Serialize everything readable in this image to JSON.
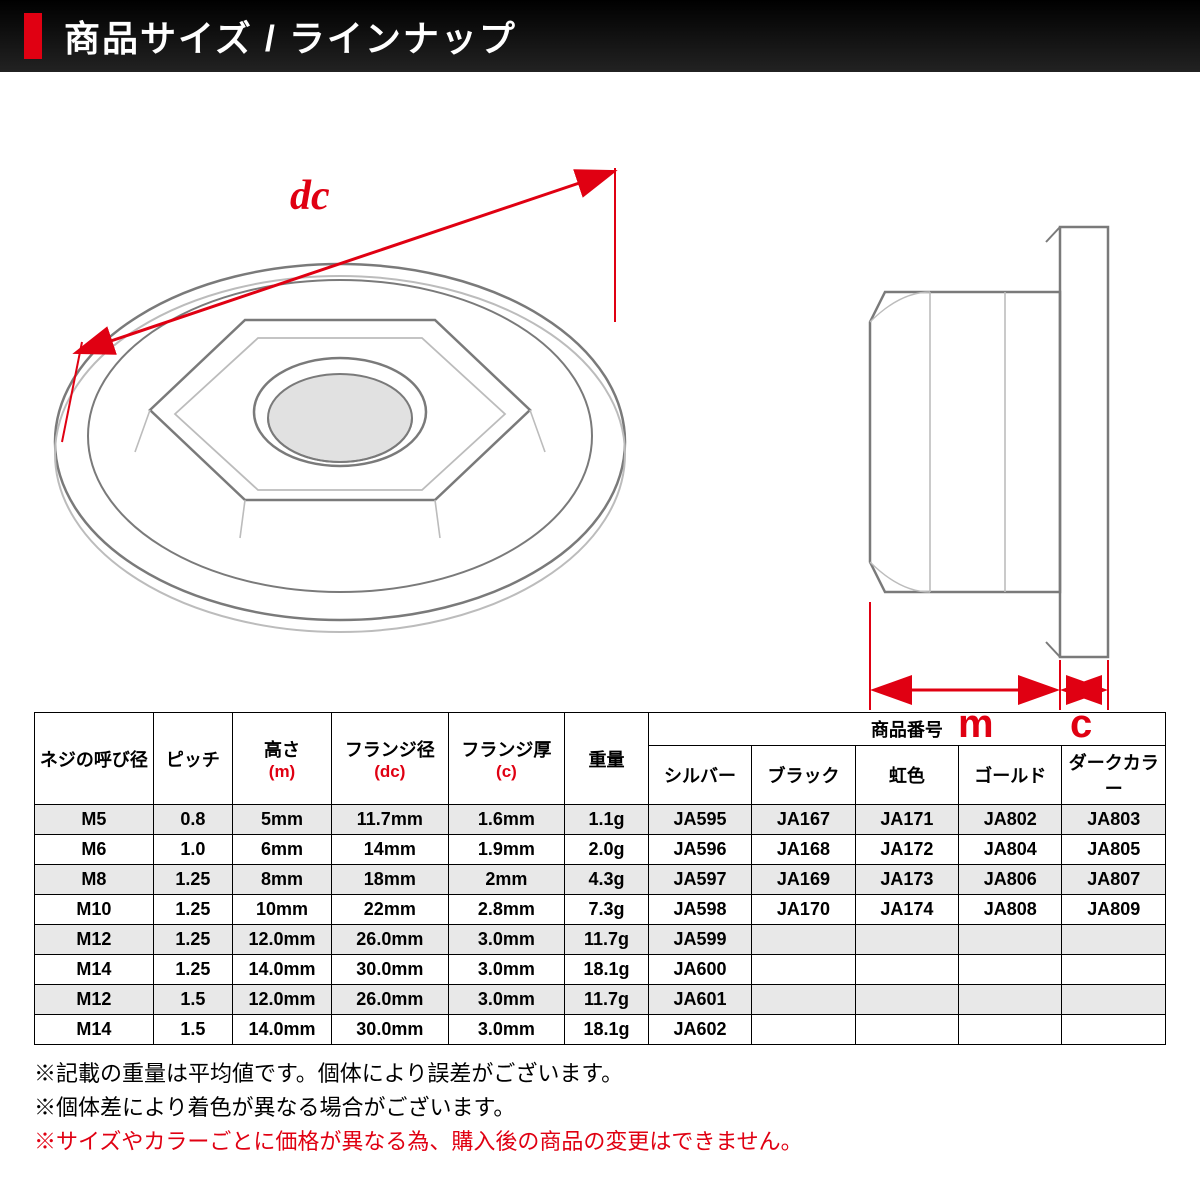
{
  "header": {
    "title": "商品サイズ / ラインナップ"
  },
  "dims": {
    "dc": "dc",
    "m": "m",
    "c": "c"
  },
  "table": {
    "headers": {
      "nominal_dia": "ネジの呼び径",
      "pitch": "ピッチ",
      "height": "高さ",
      "height_sym": "(m)",
      "flange_dia": "フランジ径",
      "flange_dia_sym": "(dc)",
      "flange_thk": "フランジ厚",
      "flange_thk_sym": "(c)",
      "weight": "重量",
      "part_no": "商品番号",
      "silver": "シルバー",
      "black": "ブラック",
      "rainbow": "虹色",
      "gold": "ゴールド",
      "dark": "ダークカラー"
    },
    "rows": [
      {
        "nd": "M5",
        "p": "0.8",
        "h": "5mm",
        "dc": "11.7mm",
        "c": "1.6mm",
        "w": "1.1g",
        "pn": [
          "JA595",
          "JA167",
          "JA171",
          "JA802",
          "JA803"
        ]
      },
      {
        "nd": "M6",
        "p": "1.0",
        "h": "6mm",
        "dc": "14mm",
        "c": "1.9mm",
        "w": "2.0g",
        "pn": [
          "JA596",
          "JA168",
          "JA172",
          "JA804",
          "JA805"
        ]
      },
      {
        "nd": "M8",
        "p": "1.25",
        "h": "8mm",
        "dc": "18mm",
        "c": "2mm",
        "w": "4.3g",
        "pn": [
          "JA597",
          "JA169",
          "JA173",
          "JA806",
          "JA807"
        ]
      },
      {
        "nd": "M10",
        "p": "1.25",
        "h": "10mm",
        "dc": "22mm",
        "c": "2.8mm",
        "w": "7.3g",
        "pn": [
          "JA598",
          "JA170",
          "JA174",
          "JA808",
          "JA809"
        ]
      },
      {
        "nd": "M12",
        "p": "1.25",
        "h": "12.0mm",
        "dc": "26.0mm",
        "c": "3.0mm",
        "w": "11.7g",
        "pn": [
          "JA599",
          "",
          "",
          "",
          ""
        ]
      },
      {
        "nd": "M14",
        "p": "1.25",
        "h": "14.0mm",
        "dc": "30.0mm",
        "c": "3.0mm",
        "w": "18.1g",
        "pn": [
          "JA600",
          "",
          "",
          "",
          ""
        ]
      },
      {
        "nd": "M12",
        "p": "1.5",
        "h": "12.0mm",
        "dc": "26.0mm",
        "c": "3.0mm",
        "w": "11.7g",
        "pn": [
          "JA601",
          "",
          "",
          "",
          ""
        ]
      },
      {
        "nd": "M14",
        "p": "1.5",
        "h": "14.0mm",
        "dc": "30.0mm",
        "c": "3.0mm",
        "w": "18.1g",
        "pn": [
          "JA602",
          "",
          "",
          "",
          ""
        ]
      }
    ]
  },
  "notes": {
    "n1": "※記載の重量は平均値です。個体により誤差がございます。",
    "n2": "※個体差により着色が異なる場合がございます。",
    "n3": "※サイズやカラーごとに価格が異なる為、購入後の商品の変更はできません。"
  },
  "style": {
    "accent_color": "#e00012",
    "header_bg": "#000000",
    "line_color": "#7a7a7a",
    "line_color_light": "#bcbcbc",
    "shade_bg": "#e8e8e8"
  }
}
